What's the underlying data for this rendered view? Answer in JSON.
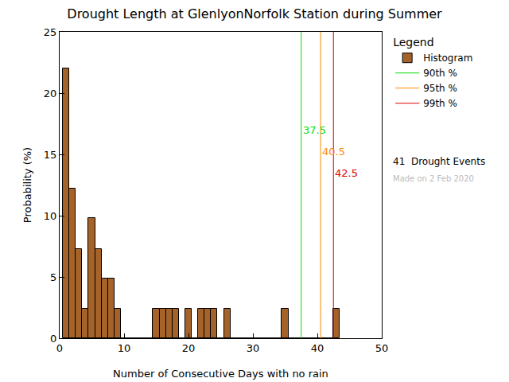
{
  "chart_data": {
    "type": "histogram",
    "title": "Drought Length at GlenlyonNorfolk Station during Summer",
    "x_label": "Number of Consecutive Days with no rain",
    "y_label": "Probability (%)",
    "name": "Histogram",
    "bins": [
      0.5,
      1.5,
      2.5,
      3.5,
      4.5,
      5.5,
      6.5,
      7.5,
      8.5,
      9.5,
      10.5,
      11.5,
      12.5,
      13.5,
      14.5,
      15.5,
      16.5,
      17.5,
      18.5,
      19.5,
      20.5,
      21.5,
      22.5,
      23.5,
      24.5,
      25.5,
      26.5,
      27.5,
      28.5,
      29.5,
      30.5,
      31.5,
      32.5,
      33.5,
      34.5,
      35.5,
      36.5,
      37.5,
      38.5,
      39.5,
      40.5,
      41.5,
      42.5,
      43.5
    ],
    "values": [
      22.0,
      12.2,
      7.3,
      2.4,
      9.8,
      7.3,
      4.9,
      4.9,
      2.4,
      0,
      0,
      0,
      0,
      0,
      2.4,
      2.4,
      2.4,
      2.4,
      0,
      2.4,
      0,
      2.4,
      2.4,
      2.4,
      0,
      2.4,
      0,
      0,
      0,
      0,
      0,
      0,
      0,
      0,
      2.4,
      0,
      0,
      0,
      0,
      0,
      0,
      0,
      2.4
    ],
    "color": "#a5632a",
    "percentiles": [
      {
        "name": "90th %",
        "value": 37.5,
        "color": "#00dd00"
      },
      {
        "name": "95th %",
        "value": 40.5,
        "color": "#ff8800"
      },
      {
        "name": "99th %",
        "value": 42.5,
        "color": "#dd0000"
      }
    ],
    "legend_title": "Legend",
    "annotations": [
      "41  Drought Events",
      "Made on 2 Feb 2020"
    ],
    "xlim": [
      0,
      50
    ],
    "xticks": [
      0,
      10,
      20,
      30,
      40,
      50
    ],
    "ylim": [
      0,
      25
    ],
    "yticks": [
      0,
      5,
      10,
      15,
      20,
      25
    ],
    "grid": false,
    "legend": "right"
  }
}
